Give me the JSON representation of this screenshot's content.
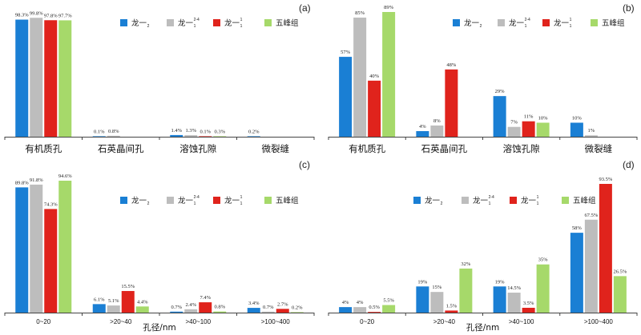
{
  "legend": {
    "series_names": [
      "龙一₂",
      "龙一₁²⁻⁴",
      "龙一₁¹",
      "五峰组"
    ],
    "series_base": [
      "龙一",
      "龙一",
      "龙一",
      "五峰组"
    ],
    "series_sub": [
      "2",
      "1",
      "1",
      ""
    ],
    "series_sup": [
      "",
      "2-4",
      "1",
      ""
    ]
  },
  "colors": [
    "#1a7fd4",
    "#bdbdbd",
    "#e0231c",
    "#a6d96a"
  ],
  "chart_data": [
    {
      "panel": "(a)",
      "type": "bar",
      "categories": [
        "有机质孔",
        "石英晶间孔",
        "溶蚀孔隙",
        "微裂缝"
      ],
      "xlabel": "",
      "ylim": [
        0,
        100
      ],
      "series": [
        {
          "name": "龙一₂",
          "values": [
            98.3,
            0.1,
            1.4,
            0.2
          ],
          "labels": [
            "98.3%",
            "0.1%",
            "1.4%",
            "0.2%"
          ]
        },
        {
          "name": "龙一₁²⁻⁴",
          "values": [
            99.8,
            0.8,
            1.3,
            null
          ],
          "labels": [
            "99.8%",
            "0.8%",
            "1.3%",
            ""
          ]
        },
        {
          "name": "龙一₁¹",
          "values": [
            97.8,
            null,
            0.1,
            null
          ],
          "labels": [
            "97.8%",
            "",
            "0.1%",
            ""
          ]
        },
        {
          "name": "五峰组",
          "values": [
            97.7,
            null,
            0.3,
            null
          ],
          "labels": [
            "97.7%",
            "",
            "0.3%",
            ""
          ]
        }
      ]
    },
    {
      "panel": "(b)",
      "type": "bar",
      "categories": [
        "有机质孔",
        "石英晶间孔",
        "溶蚀孔隙",
        "微裂缝"
      ],
      "xlabel": "",
      "ylim": [
        0,
        89
      ],
      "series": [
        {
          "name": "龙一₂",
          "values": [
            57,
            4,
            29,
            10
          ],
          "labels": [
            "57%",
            "4%",
            "29%",
            "10%"
          ]
        },
        {
          "name": "龙一₁²⁻⁴",
          "values": [
            85,
            8,
            7,
            1
          ],
          "labels": [
            "85%",
            "8%",
            "7%",
            "1%"
          ]
        },
        {
          "name": "龙一₁¹",
          "values": [
            40,
            48,
            11,
            null
          ],
          "labels": [
            "40%",
            "48%",
            "11%",
            ""
          ]
        },
        {
          "name": "五峰组",
          "values": [
            89,
            null,
            10,
            null
          ],
          "labels": [
            "89%",
            "",
            "10%",
            ""
          ]
        }
      ]
    },
    {
      "panel": "(c)",
      "type": "bar",
      "categories": [
        "0~20",
        ">20~40",
        ">40~100",
        ">100~400"
      ],
      "xlabel": "孔径/nm",
      "ylim": [
        0,
        94.6
      ],
      "series": [
        {
          "name": "龙一₂",
          "values": [
            89.8,
            6.1,
            0.7,
            3.4
          ],
          "labels": [
            "89.8%",
            "6.1%",
            "0.7%",
            "3.4%"
          ]
        },
        {
          "name": "龙一₁²⁻⁴",
          "values": [
            91.8,
            5.1,
            2.4,
            0.7
          ],
          "labels": [
            "91.8%",
            "5.1%",
            "2.4%",
            "0.7%"
          ]
        },
        {
          "name": "龙一₁¹",
          "values": [
            74.3,
            15.5,
            7.4,
            2.7
          ],
          "labels": [
            "74.3%",
            "15.5%",
            "7.4%",
            "2.7%"
          ]
        },
        {
          "name": "五峰组",
          "values": [
            94.6,
            4.4,
            0.8,
            0.2
          ],
          "labels": [
            "94.6%",
            "4.4%",
            "0.8%",
            "0.2%"
          ]
        }
      ]
    },
    {
      "panel": "(d)",
      "type": "bar",
      "categories": [
        "0~20",
        ">20~40",
        ">40~100",
        ">100~400"
      ],
      "xlabel": "孔径/nm",
      "ylim": [
        0,
        93.5
      ],
      "series": [
        {
          "name": "龙一₂",
          "values": [
            4,
            19,
            19,
            58
          ],
          "labels": [
            "4%",
            "19%",
            "19%",
            "58%"
          ]
        },
        {
          "name": "龙一₁²⁻⁴",
          "values": [
            4,
            15,
            14.5,
            67.5
          ],
          "labels": [
            "4%",
            "15%",
            "14.5%",
            "67.5%"
          ]
        },
        {
          "name": "龙一₁¹",
          "values": [
            0.5,
            1.5,
            3.5,
            93.5
          ],
          "labels": [
            "0.5%",
            "1.5%",
            "3.5%",
            "93.5%"
          ]
        },
        {
          "name": "五峰组",
          "values": [
            5.5,
            32,
            35,
            26.5
          ],
          "labels": [
            "5.5%",
            "32%",
            "35%",
            "26.5%"
          ]
        }
      ]
    }
  ]
}
